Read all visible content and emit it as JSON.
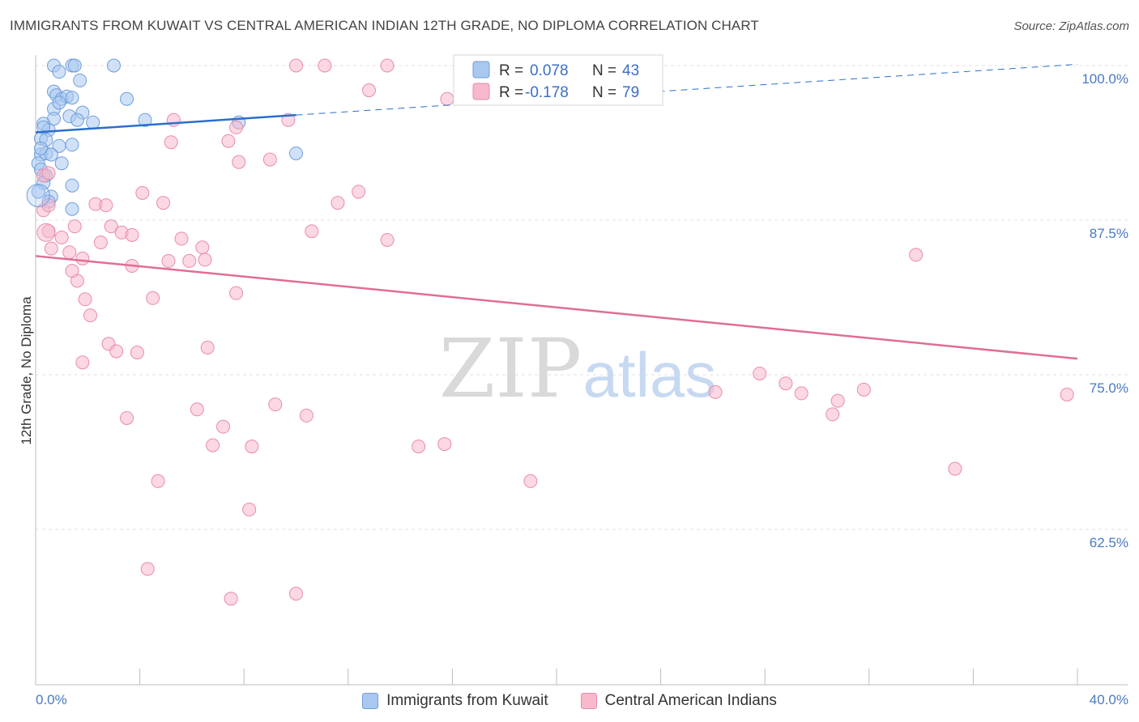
{
  "title": "IMMIGRANTS FROM KUWAIT VS CENTRAL AMERICAN INDIAN 12TH GRADE, NO DIPLOMA CORRELATION CHART",
  "source": "Source: ZipAtlas.com",
  "watermark": {
    "zip": "ZIP",
    "atlas": "atlas"
  },
  "colors": {
    "blue_fill": "#a9c8f0",
    "blue_stroke": "#6f9edb",
    "blue_line": "#2a6fcd",
    "pink_fill": "#f7b8cc",
    "pink_stroke": "#e98bab",
    "pink_line": "#e06d98",
    "tick": "#4a78c2",
    "grid": "#e2e2e2"
  },
  "legend": {
    "rows": [
      {
        "r_label": "R = ",
        "r_value": "0.078",
        "n_label": "N = ",
        "n_value": "43"
      },
      {
        "r_label": "R = ",
        "r_value": "-0.178",
        "n_label": "N = ",
        "n_value": "79"
      }
    ]
  },
  "chart_data": {
    "type": "scatter",
    "title": "IMMIGRANTS FROM KUWAIT VS CENTRAL AMERICAN INDIAN 12TH GRADE, NO DIPLOMA CORRELATION CHART",
    "xlabel": "",
    "ylabel": "12th Grade, No Diploma",
    "xlim": [
      0,
      40
    ],
    "ylim": [
      50.5,
      101.5
    ],
    "y_ticks": [
      {
        "value": 100,
        "label": "100.0%"
      },
      {
        "value": 87.5,
        "label": "87.5%"
      },
      {
        "value": 75,
        "label": "75.0%"
      },
      {
        "value": 62.5,
        "label": "62.5%"
      }
    ],
    "x_tick_labels": [
      {
        "value": 0,
        "label": "0.0%"
      },
      {
        "value": 40,
        "label": "40.0%"
      }
    ],
    "x_minor_ticks": [
      0,
      4,
      8,
      12,
      16,
      20,
      24,
      28,
      32,
      36,
      40
    ],
    "grid": true,
    "legend_position": "top-center",
    "series": [
      {
        "name": "Immigrants from Kuwait",
        "color": "#a9c8f0",
        "stroke": "#6f9edb",
        "trend": {
          "x": [
            0,
            10
          ],
          "y": [
            94.6,
            96.0
          ],
          "dashed_to": [
            40,
            100.1
          ]
        },
        "points": [
          [
            0.7,
            100.0
          ],
          [
            1.4,
            100.0
          ],
          [
            1.5,
            100.0
          ],
          [
            3.0,
            100.0
          ],
          [
            0.9,
            99.5
          ],
          [
            1.7,
            98.8
          ],
          [
            0.7,
            97.9
          ],
          [
            0.8,
            97.6
          ],
          [
            1.0,
            97.3
          ],
          [
            1.2,
            97.5
          ],
          [
            1.4,
            97.4
          ],
          [
            3.5,
            97.3
          ],
          [
            0.7,
            96.5
          ],
          [
            1.3,
            95.9
          ],
          [
            1.8,
            96.2
          ],
          [
            0.7,
            95.7
          ],
          [
            1.6,
            95.6
          ],
          [
            2.2,
            95.4
          ],
          [
            4.2,
            95.6
          ],
          [
            0.3,
            95.3
          ],
          [
            0.5,
            94.8
          ],
          [
            7.8,
            95.4
          ],
          [
            0.2,
            94.1
          ],
          [
            0.4,
            94.0
          ],
          [
            1.4,
            93.6
          ],
          [
            0.9,
            93.5
          ],
          [
            0.2,
            92.8
          ],
          [
            0.4,
            92.9
          ],
          [
            0.6,
            92.8
          ],
          [
            10.0,
            92.9
          ],
          [
            0.1,
            92.1
          ],
          [
            1.0,
            92.1
          ],
          [
            0.2,
            91.6
          ],
          [
            0.4,
            91.1
          ],
          [
            0.3,
            90.5
          ],
          [
            1.4,
            90.3
          ],
          [
            0.1,
            89.8
          ],
          [
            0.6,
            89.4
          ],
          [
            0.5,
            89.0
          ],
          [
            1.4,
            88.4
          ],
          [
            0.2,
            93.3
          ],
          [
            0.3,
            95.0
          ],
          [
            0.9,
            97.0
          ]
        ]
      },
      {
        "name": "Central American Indians",
        "color": "#f7b8cc",
        "stroke": "#e98bab",
        "trend": {
          "x": [
            0,
            40
          ],
          "y": [
            84.6,
            76.3
          ]
        },
        "points": [
          [
            10.0,
            100.0
          ],
          [
            11.1,
            100.0
          ],
          [
            13.5,
            100.0
          ],
          [
            17.2,
            100.0
          ],
          [
            23.0,
            100.0
          ],
          [
            12.8,
            98.0
          ],
          [
            15.8,
            97.3
          ],
          [
            5.3,
            95.6
          ],
          [
            7.7,
            95.0
          ],
          [
            9.7,
            95.6
          ],
          [
            5.2,
            93.8
          ],
          [
            7.4,
            93.9
          ],
          [
            7.8,
            92.2
          ],
          [
            9.0,
            92.4
          ],
          [
            0.3,
            91.1
          ],
          [
            0.5,
            91.3
          ],
          [
            4.1,
            89.7
          ],
          [
            11.6,
            88.9
          ],
          [
            12.4,
            89.8
          ],
          [
            2.3,
            88.8
          ],
          [
            2.7,
            88.7
          ],
          [
            4.9,
            88.9
          ],
          [
            0.3,
            88.3
          ],
          [
            0.5,
            88.7
          ],
          [
            0.5,
            86.6
          ],
          [
            1.0,
            86.1
          ],
          [
            1.5,
            87.0
          ],
          [
            2.9,
            87.0
          ],
          [
            3.3,
            86.5
          ],
          [
            3.7,
            86.3
          ],
          [
            10.6,
            86.6
          ],
          [
            13.5,
            85.9
          ],
          [
            0.6,
            85.2
          ],
          [
            2.5,
            85.7
          ],
          [
            5.6,
            86.0
          ],
          [
            6.4,
            85.3
          ],
          [
            1.3,
            84.9
          ],
          [
            1.8,
            84.4
          ],
          [
            5.1,
            84.2
          ],
          [
            5.9,
            84.2
          ],
          [
            6.5,
            84.3
          ],
          [
            3.7,
            83.8
          ],
          [
            1.6,
            82.6
          ],
          [
            1.9,
            81.1
          ],
          [
            4.5,
            81.2
          ],
          [
            7.7,
            81.6
          ],
          [
            2.1,
            79.8
          ],
          [
            2.8,
            77.5
          ],
          [
            3.1,
            76.9
          ],
          [
            3.9,
            76.8
          ],
          [
            6.6,
            77.2
          ],
          [
            1.4,
            83.4
          ],
          [
            1.8,
            76.0
          ],
          [
            3.5,
            71.5
          ],
          [
            6.2,
            72.2
          ],
          [
            9.2,
            72.6
          ],
          [
            10.4,
            71.7
          ],
          [
            7.2,
            70.8
          ],
          [
            6.8,
            69.3
          ],
          [
            8.3,
            69.2
          ],
          [
            14.7,
            69.2
          ],
          [
            15.7,
            69.4
          ],
          [
            4.7,
            66.4
          ],
          [
            19.0,
            66.4
          ],
          [
            8.2,
            64.1
          ],
          [
            4.3,
            59.3
          ],
          [
            7.5,
            56.9
          ],
          [
            10.0,
            57.3
          ],
          [
            26.1,
            73.6
          ],
          [
            27.8,
            75.1
          ],
          [
            28.8,
            74.3
          ],
          [
            29.4,
            73.5
          ],
          [
            30.6,
            71.8
          ],
          [
            30.8,
            72.9
          ],
          [
            31.8,
            73.8
          ],
          [
            33.8,
            84.7
          ],
          [
            35.3,
            67.4
          ],
          [
            39.6,
            73.4
          ],
          [
            22.5,
            100.0
          ]
        ]
      }
    ],
    "bottom_legend": [
      "Immigrants from Kuwait",
      "Central American Indians"
    ]
  }
}
